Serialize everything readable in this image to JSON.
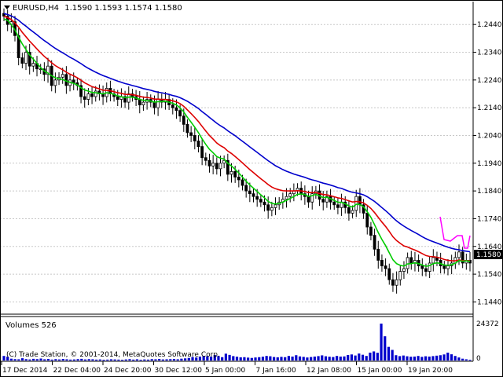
{
  "header": {
    "symbol": "EURUSD,H4",
    "open": "1.1590",
    "high": "1.1593",
    "low": "1.1574",
    "close": "1.1580"
  },
  "price_axis": {
    "ticks": [
      "1.2440",
      "1.2340",
      "1.2240",
      "1.2140",
      "1.2040",
      "1.1940",
      "1.1840",
      "1.1740",
      "1.1640",
      "1.1540",
      "1.1440"
    ],
    "current": "1.1580"
  },
  "time_axis": {
    "labels": [
      "17 Dec 2014",
      "22 Dec 04:00",
      "24 Dec 20:00",
      "30 Dec 12:00",
      "5 Jan 00:00",
      "7 Jan 16:00",
      "12 Jan 08:00",
      "15 Jan 00:00",
      "19 Jan 20:00"
    ]
  },
  "volumes_panel": {
    "title": "Volumes 526",
    "max_label": "24372",
    "zero_label": "0"
  },
  "watermark": "(C) Trade Station, © 2001-2014, MetaQuotes Software Corp.",
  "colors": {
    "candle": "#000000",
    "ma_fast": "#00cc00",
    "ma_mid": "#dd0000",
    "ma_slow": "#0000cc",
    "magenta_line": "#ff00ff",
    "volume": "#0000cc",
    "grid": "#c8c8c8"
  },
  "chart_data": {
    "type": "candlestick",
    "price_ylim": [
      1.141,
      1.25
    ],
    "closes": [
      1.247,
      1.244,
      1.245,
      1.24,
      1.232,
      1.23,
      1.234,
      1.229,
      1.23,
      1.228,
      1.228,
      1.226,
      1.229,
      1.222,
      1.224,
      1.225,
      1.226,
      1.222,
      1.224,
      1.223,
      1.222,
      1.218,
      1.217,
      1.219,
      1.218,
      1.22,
      1.219,
      1.218,
      1.221,
      1.219,
      1.218,
      1.217,
      1.218,
      1.216,
      1.219,
      1.218,
      1.217,
      1.215,
      1.216,
      1.217,
      1.216,
      1.214,
      1.217,
      1.216,
      1.217,
      1.215,
      1.214,
      1.213,
      1.211,
      1.208,
      1.205,
      1.204,
      1.202,
      1.2,
      1.196,
      1.195,
      1.193,
      1.194,
      1.192,
      1.194,
      1.195,
      1.19,
      1.191,
      1.189,
      1.188,
      1.186,
      1.184,
      1.183,
      1.182,
      1.181,
      1.18,
      1.179,
      1.177,
      1.178,
      1.179,
      1.18,
      1.181,
      1.182,
      1.183,
      1.184,
      1.185,
      1.183,
      1.182,
      1.18,
      1.183,
      1.184,
      1.181,
      1.18,
      1.182,
      1.18,
      1.179,
      1.178,
      1.18,
      1.178,
      1.176,
      1.177,
      1.182,
      1.179,
      1.176,
      1.171,
      1.168,
      1.163,
      1.159,
      1.157,
      1.156,
      1.152,
      1.15,
      1.152,
      1.155,
      1.156,
      1.16,
      1.158,
      1.159,
      1.157,
      1.156,
      1.155,
      1.158,
      1.16,
      1.159,
      1.157,
      1.156,
      1.157,
      1.158,
      1.16,
      1.162,
      1.158,
      1.159,
      1.158
    ],
    "ma_fast": [
      1.246,
      1.2455,
      1.244,
      1.242,
      1.2395,
      1.237,
      1.235,
      1.233,
      1.2315,
      1.23,
      1.2285,
      1.2272,
      1.2265,
      1.2255,
      1.2248,
      1.2245,
      1.2242,
      1.2236,
      1.2232,
      1.2228,
      1.2222,
      1.2212,
      1.2204,
      1.22,
      1.2195,
      1.2194,
      1.2192,
      1.219,
      1.2194,
      1.2192,
      1.2188,
      1.2183,
      1.218,
      1.2176,
      1.2178,
      1.2178,
      1.2175,
      1.217,
      1.2167,
      1.2166,
      1.2164,
      1.216,
      1.2162,
      1.2162,
      1.2163,
      1.216,
      1.2156,
      1.215,
      1.214,
      1.2125,
      1.2105,
      1.2088,
      1.207,
      1.205,
      1.2028,
      1.2008,
      1.199,
      1.1978,
      1.1964,
      1.1958,
      1.1955,
      1.194,
      1.193,
      1.1918,
      1.1905,
      1.189,
      1.1875,
      1.1862,
      1.185,
      1.1838,
      1.1826,
      1.1815,
      1.1802,
      1.1795,
      1.1793,
      1.1795,
      1.18,
      1.1806,
      1.1813,
      1.182,
      1.1828,
      1.1829,
      1.1827,
      1.182,
      1.1823,
      1.1828,
      1.1822,
      1.1816,
      1.1817,
      1.1812,
      1.1806,
      1.1799,
      1.1799,
      1.1794,
      1.1786,
      1.1782,
      1.1792,
      1.1791,
      1.1783,
      1.1765,
      1.1745,
      1.1718,
      1.169,
      1.1665,
      1.1643,
      1.1617,
      1.1592,
      1.1578,
      1.1572,
      1.1569,
      1.1577,
      1.1578,
      1.1581,
      1.1578,
      1.1573,
      1.1568,
      1.1571,
      1.1578,
      1.1581,
      1.1578,
      1.1573,
      1.1572,
      1.1574,
      1.158,
      1.1589,
      1.1587,
      1.1588,
      1.1586
    ],
    "ma_mid": [
      1.247,
      1.2465,
      1.2458,
      1.2446,
      1.243,
      1.2412,
      1.2396,
      1.238,
      1.2366,
      1.2352,
      1.2338,
      1.2325,
      1.2314,
      1.2302,
      1.2292,
      1.2284,
      1.2277,
      1.2268,
      1.2261,
      1.2255,
      1.2248,
      1.2239,
      1.223,
      1.2223,
      1.2216,
      1.2212,
      1.2208,
      1.2203,
      1.2203,
      1.2201,
      1.2198,
      1.2194,
      1.2192,
      1.2188,
      1.2188,
      1.2187,
      1.2185,
      1.2181,
      1.2178,
      1.2177,
      1.2175,
      1.2171,
      1.2171,
      1.217,
      1.217,
      1.2168,
      1.2165,
      1.2161,
      1.2155,
      1.2145,
      1.2132,
      1.2119,
      1.2105,
      1.209,
      1.2073,
      1.2056,
      1.204,
      1.2027,
      1.2013,
      1.2003,
      1.1996,
      1.1984,
      1.1975,
      1.1964,
      1.1953,
      1.1941,
      1.1929,
      1.1917,
      1.1906,
      1.1895,
      1.1884,
      1.1874,
      1.1863,
      1.1854,
      1.1848,
      1.1844,
      1.1841,
      1.184,
      1.184,
      1.184,
      1.1841,
      1.184,
      1.1838,
      1.1834,
      1.1834,
      1.1834,
      1.1831,
      1.1827,
      1.1826,
      1.1823,
      1.1819,
      1.1815,
      1.1813,
      1.1809,
      1.1804,
      1.18,
      1.1802,
      1.1801,
      1.1797,
      1.1788,
      1.1777,
      1.1762,
      1.1745,
      1.1728,
      1.1712,
      1.1694,
      1.1675,
      1.1661,
      1.1651,
      1.1642,
      1.1638,
      1.1632,
      1.1627,
      1.1621,
      1.1614,
      1.1607,
      1.1604,
      1.1603,
      1.1601,
      1.1598,
      1.1593,
      1.159,
      1.1588,
      1.1588,
      1.1591,
      1.1589,
      1.1589,
      1.1588
    ],
    "ma_slow": [
      1.248,
      1.2476,
      1.2471,
      1.2464,
      1.2455,
      1.2444,
      1.2434,
      1.2423,
      1.2413,
      1.2403,
      1.2392,
      1.2382,
      1.2373,
      1.2363,
      1.2354,
      1.2346,
      1.2338,
      1.233,
      1.2322,
      1.2315,
      1.2307,
      1.2299,
      1.229,
      1.2282,
      1.2275,
      1.2268,
      1.2262,
      1.2256,
      1.2251,
      1.2246,
      1.2241,
      1.2236,
      1.2232,
      1.2227,
      1.2224,
      1.222,
      1.2217,
      1.2213,
      1.2209,
      1.2206,
      1.2203,
      1.2199,
      1.2196,
      1.2194,
      1.2191,
      1.2188,
      1.2184,
      1.2181,
      1.2176,
      1.217,
      1.2163,
      1.2155,
      1.2146,
      1.2137,
      1.2126,
      1.2116,
      1.2105,
      1.2095,
      1.2084,
      1.2075,
      1.2067,
      1.2057,
      1.2048,
      1.2039,
      1.2029,
      1.2019,
      1.2009,
      1.1999,
      1.1989,
      1.1979,
      1.1969,
      1.1959,
      1.1949,
      1.194,
      1.1931,
      1.1924,
      1.1917,
      1.1911,
      1.1906,
      1.1901,
      1.1897,
      1.1893,
      1.1889,
      1.1884,
      1.188,
      1.1877,
      1.1872,
      1.1868,
      1.1865,
      1.1861,
      1.1857,
      1.1852,
      1.1849,
      1.1844,
      1.1839,
      1.1835,
      1.1833,
      1.183,
      1.1826,
      1.1819,
      1.1811,
      1.1802,
      1.1791,
      1.178,
      1.1769,
      1.1757,
      1.1744,
      1.1732,
      1.1722,
      1.1713,
      1.1705,
      1.1697,
      1.169,
      1.1683,
      1.1675,
      1.1668,
      1.1662,
      1.1657,
      1.1652,
      1.1647,
      1.1642,
      1.1637,
      1.1633,
      1.163,
      1.1628,
      1.1625,
      1.1623,
      1.1621
    ],
    "volumes": [
      3000,
      2500,
      1200,
      900,
      800,
      1500,
      900,
      700,
      1100,
      900,
      1300,
      800,
      1000,
      600,
      900,
      700,
      1000,
      800,
      600,
      700,
      900,
      1100,
      700,
      900,
      800,
      600,
      700,
      500,
      600,
      800,
      700,
      600,
      500,
      700,
      900,
      600,
      800,
      500,
      700,
      600,
      900,
      800,
      1000,
      700,
      800,
      900,
      1000,
      800,
      1200,
      1400,
      1700,
      2300,
      2000,
      2600,
      3100,
      2800,
      2500,
      3600,
      3000,
      2200,
      4500,
      3700,
      2900,
      2500,
      2100,
      2200,
      1900,
      1700,
      2000,
      2200,
      2500,
      3000,
      2800,
      2300,
      2100,
      2400,
      2200,
      3000,
      2600,
      3500,
      2700,
      2400,
      2000,
      2300,
      2600,
      2900,
      3400,
      2800,
      2500,
      2300,
      3000,
      2600,
      2700,
      3600,
      4000,
      3300,
      4600,
      3800,
      3000,
      5200,
      6000,
      5100,
      24372,
      16000,
      9000,
      7000,
      3500,
      2900,
      3300,
      2800,
      2500,
      2600,
      3000,
      2400,
      2800,
      2600,
      2900,
      3200,
      3500,
      4000,
      5200,
      4100,
      3000,
      2000,
      1200,
      800,
      500
    ]
  }
}
